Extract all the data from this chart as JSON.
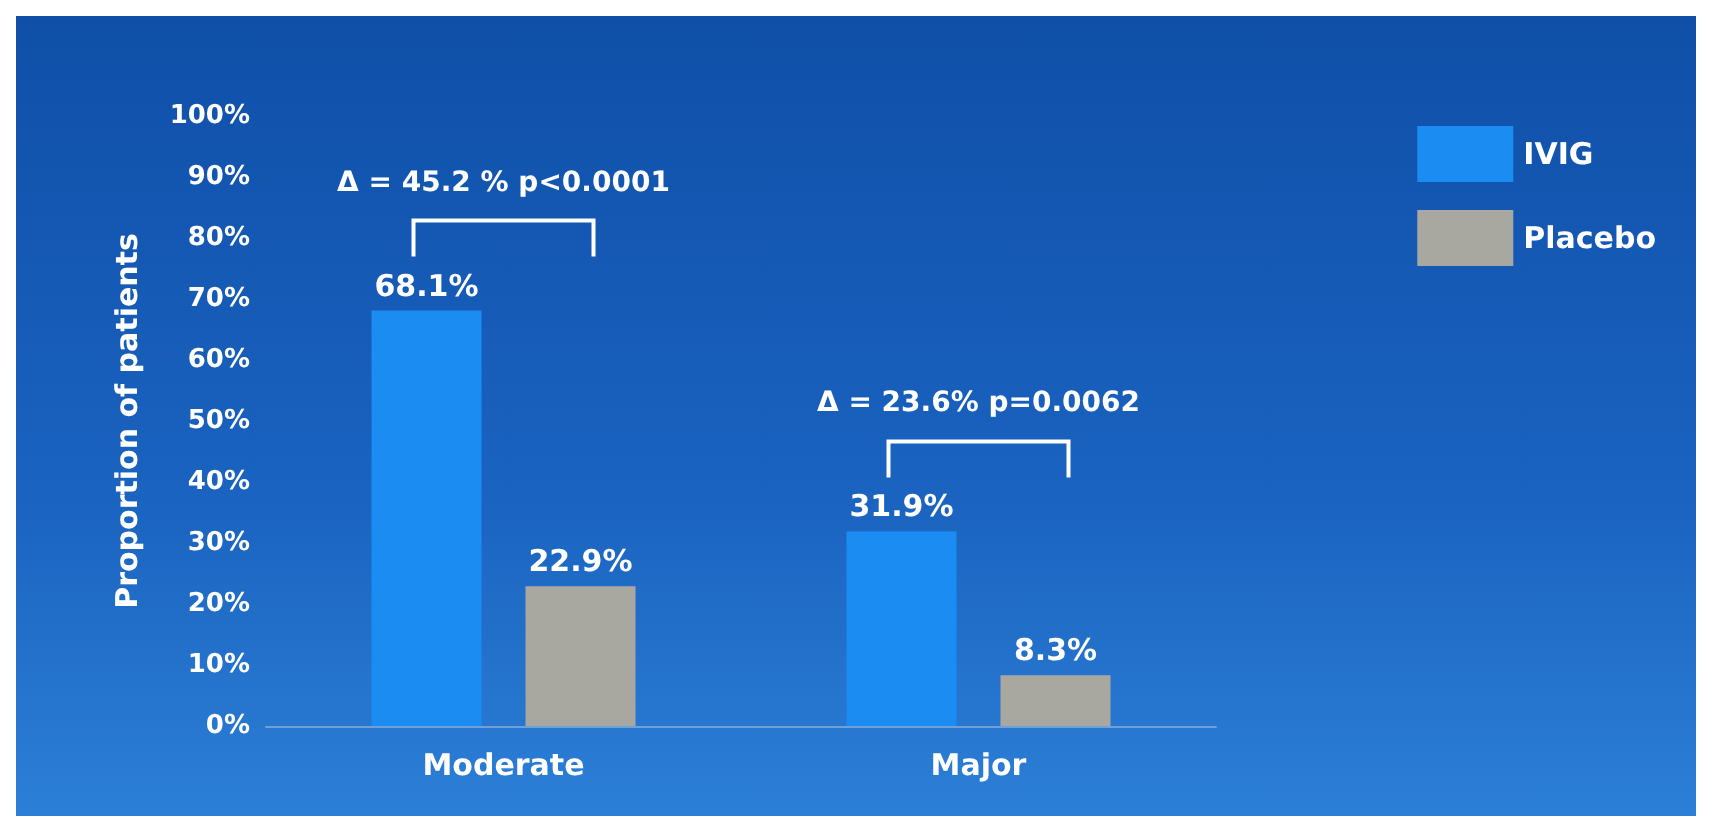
{
  "chart_data": {
    "type": "bar",
    "ylabel": "Proportion of patients",
    "categories": [
      "Moderate",
      "Major"
    ],
    "series": [
      {
        "name": "IVIG",
        "color": "#1a8cf2",
        "values": [
          68.1,
          31.9
        ],
        "value_labels": [
          "68.1%",
          "31.9%"
        ]
      },
      {
        "name": "Placebo",
        "color": "#a9a8a0",
        "values": [
          22.9,
          8.3
        ],
        "value_labels": [
          "22.9%",
          "8.3%"
        ]
      }
    ],
    "ylim": [
      0,
      100
    ],
    "yticks": [
      {
        "value": 0,
        "label": "0%"
      },
      {
        "value": 10,
        "label": "10%"
      },
      {
        "value": 20,
        "label": "20%"
      },
      {
        "value": 30,
        "label": "30%"
      },
      {
        "value": 40,
        "label": "40%"
      },
      {
        "value": 50,
        "label": "50%"
      },
      {
        "value": 60,
        "label": "60%"
      },
      {
        "value": 70,
        "label": "70%"
      },
      {
        "value": 80,
        "label": "80%"
      },
      {
        "value": 90,
        "label": "90%"
      },
      {
        "value": 100,
        "label": "100%"
      }
    ],
    "annotations": [
      "Δ = 45.2 % p<0.0001",
      "Δ = 23.6% p=0.0062"
    ],
    "grid": false,
    "legend": "top right"
  }
}
